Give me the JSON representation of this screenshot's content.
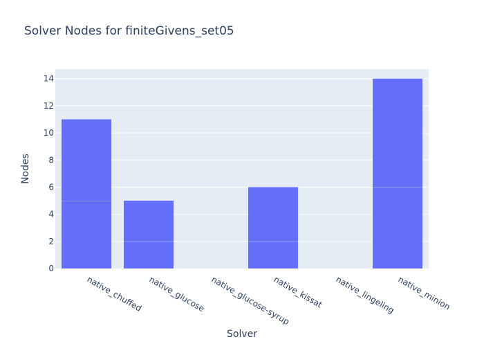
{
  "chart_data": {
    "type": "bar",
    "title": "Solver Nodes for finiteGivens_set05",
    "xlabel": "Solver",
    "ylabel": "Nodes",
    "categories": [
      "native_chuffed",
      "native_glucose",
      "native_glucose-syrup",
      "native_kissat",
      "native_lingeling",
      "native_minion"
    ],
    "stacked_segments": [
      [
        5,
        6
      ],
      [
        2,
        3
      ],
      [
        0
      ],
      [
        2,
        4
      ],
      [
        0
      ],
      [
        6,
        8
      ]
    ],
    "values": [
      11,
      5,
      0,
      6,
      0,
      14
    ],
    "ylim": [
      0,
      14.7
    ],
    "y_ticks": [
      0,
      2,
      4,
      6,
      8,
      10,
      12,
      14
    ],
    "grid": true,
    "legend": "none",
    "colors": {
      "bar": "#636efa",
      "plot_bg": "#e5ecf6",
      "grid": "#ffffff",
      "text": "#2a3f5f"
    }
  }
}
